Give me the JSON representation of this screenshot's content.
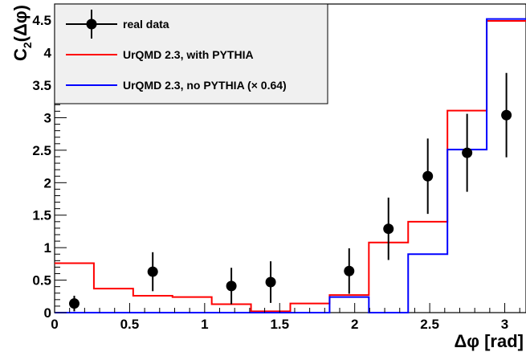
{
  "chart_data": {
    "type": "line",
    "xlabel": "Δφ [rad]",
    "ylabel_main": "C",
    "ylabel_sub": "2",
    "ylabel_tail": "(Δφ)",
    "xlim": [
      0,
      3.1416
    ],
    "ylim": [
      0,
      4.75
    ],
    "x_ticks": [
      0,
      0.5,
      1,
      1.5,
      2,
      2.5,
      3
    ],
    "x_tick_labels": [
      "0",
      "0.5",
      "1",
      "1.5",
      "2",
      "2.5",
      "3"
    ],
    "y_ticks": [
      0,
      0.5,
      1,
      1.5,
      2,
      2.5,
      3,
      3.5,
      4,
      4.5
    ],
    "y_tick_labels": [
      "0",
      "0.5",
      "1",
      "1.5",
      "2",
      "2.5",
      "3",
      "3.5",
      "4",
      "4.5"
    ],
    "bin_edges": [
      0,
      0.2618,
      0.5236,
      0.7854,
      1.0472,
      1.309,
      1.5708,
      1.8326,
      2.0944,
      2.3562,
      2.618,
      2.8798,
      3.1416
    ],
    "legend_placement": "top-left",
    "series": [
      {
        "name": "real data",
        "kind": "points",
        "color": "#000000",
        "x": [
          0.131,
          0.654,
          1.178,
          1.44,
          1.963,
          2.225,
          2.487,
          2.749,
          3.011
        ],
        "y": [
          0.14,
          0.63,
          0.41,
          0.47,
          0.64,
          1.29,
          2.1,
          2.46,
          3.04
        ],
        "err": [
          0.12,
          0.3,
          0.28,
          0.32,
          0.35,
          0.48,
          0.58,
          0.6,
          0.65
        ]
      },
      {
        "name": "UrQMD 2.3, with PYTHIA",
        "kind": "histogram",
        "color": "#ff0000",
        "values": [
          0.76,
          0.37,
          0.26,
          0.24,
          0.13,
          0.02,
          0.14,
          0.27,
          1.08,
          1.4,
          3.11,
          4.49
        ]
      },
      {
        "name": "UrQMD 2.3, no PYTHIA (× 0.64)",
        "kind": "histogram",
        "color": "#0000ff",
        "values": [
          0.0,
          0.0,
          0.0,
          0.0,
          0.0,
          0.0,
          0.0,
          0.24,
          0.0,
          0.9,
          2.51,
          4.52
        ]
      }
    ]
  }
}
